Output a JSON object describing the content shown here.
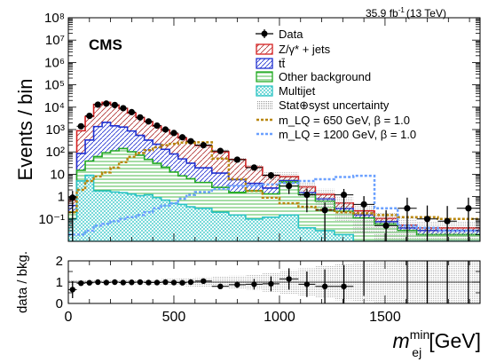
{
  "lumi_label": "35.9 fb",
  "lumi_exp": "-1",
  "lumi_energy": "(13 TeV)",
  "experiment_label": "CMS",
  "chart_data": [
    {
      "type": "bar",
      "subtype": "stacked-step-histogram",
      "y_scale": "log",
      "ylabel": "Events / bin",
      "ylim": [
        0.01,
        100000000
      ],
      "xlim": [
        0,
        1950
      ],
      "y_ticks": [
        "10⁻¹",
        "1",
        "10",
        "10²",
        "10³",
        "10⁴",
        "10⁵",
        "10⁶",
        "10⁷",
        "10⁸"
      ],
      "x_bins": [
        0,
        40,
        80,
        120,
        160,
        200,
        240,
        280,
        320,
        360,
        400,
        440,
        480,
        520,
        560,
        600,
        680,
        760,
        840,
        920,
        1000,
        1090,
        1170,
        1260,
        1350,
        1450,
        1560,
        1650,
        1750,
        1840,
        1950
      ],
      "series": [
        {
          "name": "Z/γ* + jets",
          "color": "#d62020",
          "values": [
            0.3,
            800,
            3500,
            12000,
            14500,
            11000,
            7500,
            4600,
            2900,
            1900,
            1200,
            820,
            560,
            370,
            250,
            170,
            90,
            40,
            17,
            6.5,
            2.7,
            1.2,
            0.5,
            0.22,
            0.08,
            0.03,
            0.012,
            0.01,
            0.01,
            0.01
          ]
        },
        {
          "name": "tt̄",
          "color": "#1f2fd0",
          "values": [
            0.2,
            70,
            300,
            1300,
            2000,
            1350,
            1150,
            760,
            480,
            290,
            190,
            110,
            68,
            40,
            25,
            15,
            8.7,
            4.2,
            2.1,
            1.1,
            0.55,
            0.3,
            0.15,
            0.08,
            0.04,
            0.015,
            0.01,
            0.01,
            0.01,
            0.01
          ]
        },
        {
          "name": "Other background",
          "color": "#22aa22",
          "values": [
            0.1,
            10,
            30,
            60,
            90,
            110,
            140,
            100,
            70,
            45,
            30,
            20,
            12,
            8,
            6,
            4,
            2.4,
            1.4,
            1.7,
            1.2,
            4.5,
            1.2,
            0.6,
            0.2,
            0.1,
            0.05,
            0.02,
            0.01,
            0.01,
            0.01
          ]
        },
        {
          "name": "Multijet",
          "color": "#2ac4c4",
          "values": [
            0.1,
            5,
            9,
            1.8,
            1.8,
            1.6,
            1.5,
            1.3,
            1.1,
            1.2,
            0.9,
            0.7,
            0.5,
            0.45,
            0.35,
            0.3,
            0.2,
            0.15,
            0.1,
            0.12,
            0.15,
            0.04,
            0.03,
            0.02,
            0.01,
            0.01,
            0.01,
            0.01,
            0.01,
            0.01
          ]
        }
      ],
      "signals": [
        {
          "name": "m_LQ = 650 GeV, β = 1.0",
          "color": "#b8860b",
          "values": [
            0.2,
            2,
            5,
            8,
            12,
            20,
            35,
            60,
            90,
            120,
            160,
            200,
            230,
            260,
            250,
            270,
            50,
            6,
            1.8,
            0.9,
            0.5,
            0.35,
            0.25,
            0.2,
            0.18,
            0.15,
            0.12,
            0.12,
            0.1,
            0.1
          ]
        },
        {
          "name": "m_LQ = 1200 GeV, β = 1.0",
          "color": "#6aa0ff",
          "values": [
            0.02,
            0.02,
            0.03,
            0.05,
            0.06,
            0.08,
            0.1,
            0.12,
            0.15,
            0.2,
            0.3,
            0.4,
            0.5,
            0.8,
            1.2,
            1.6,
            2.2,
            3.0,
            3.0,
            3.5,
            4.0,
            5.0,
            6.0,
            7.5,
            8.5,
            0.3,
            0.05,
            0.04,
            0.03,
            0.03
          ]
        }
      ],
      "data": {
        "name": "Data",
        "x": [
          20,
          60,
          100,
          140,
          180,
          220,
          260,
          300,
          340,
          380,
          420,
          460,
          500,
          540,
          580,
          640,
          720,
          800,
          880,
          960,
          1045,
          1130,
          1215,
          1305,
          1400,
          1505,
          1605,
          1700,
          1795,
          1895
        ],
        "y": [
          0.9,
          1400,
          4100,
          13000,
          14500,
          12500,
          9000,
          6000,
          3500,
          2300,
          1500,
          1000,
          700,
          450,
          300,
          200,
          110,
          45,
          20,
          9,
          3,
          1.2,
          0.25,
          1.2,
          0.45,
          0.05,
          0.3,
          0.1,
          0.08,
          0.3
        ],
        "yerr": [
          0.9,
          37,
          64,
          114,
          120,
          112,
          95,
          77,
          59,
          48,
          39,
          32,
          26,
          21,
          17,
          14,
          10,
          7,
          4.5,
          3,
          1.7,
          1,
          0.3,
          1,
          0.6,
          0.2,
          0.6,
          0.3,
          0.3,
          0.6
        ]
      },
      "uncertainty_name": "Stat⊕syst uncertainty"
    },
    {
      "type": "scatter",
      "ylabel": "data / bkg.",
      "xlabel": "m",
      "xlabel_sup": "min",
      "xlabel_sub": "ej",
      "xlabel_unit": "[GeV]",
      "ylim": [
        0,
        2
      ],
      "y_ticks": [
        "0",
        "1",
        "2"
      ],
      "xlim": [
        0,
        1950
      ],
      "x_ticks": [
        "0",
        "500",
        "1000",
        "1500"
      ],
      "x_tick_values": [
        0,
        500,
        1000,
        1500
      ],
      "x": [
        20,
        60,
        100,
        140,
        180,
        220,
        260,
        300,
        340,
        380,
        420,
        460,
        500,
        540,
        580,
        640,
        720,
        800,
        880,
        960,
        1045,
        1130,
        1215,
        1305
      ],
      "y": [
        0.65,
        0.95,
        0.97,
        1.0,
        0.98,
        1.0,
        0.98,
        0.99,
        1.0,
        0.98,
        0.98,
        1.0,
        0.98,
        0.97,
        1.0,
        1.05,
        0.8,
        0.88,
        0.9,
        0.92,
        1.15,
        0.9,
        0.8,
        0.8
      ],
      "yerr": [
        0.4,
        0.05,
        0.05,
        0.04,
        0.04,
        0.04,
        0.04,
        0.04,
        0.05,
        0.05,
        0.05,
        0.06,
        0.06,
        0.07,
        0.08,
        0.1,
        0.12,
        0.15,
        0.25,
        0.35,
        0.5,
        0.6,
        0.8,
        1.0
      ],
      "band_halfwidth": [
        0.1,
        0.08,
        0.08,
        0.08,
        0.08,
        0.08,
        0.1,
        0.1,
        0.1,
        0.12,
        0.12,
        0.15,
        0.15,
        0.18,
        0.2,
        0.22,
        0.25,
        0.3,
        0.35,
        0.45,
        0.55,
        0.65,
        0.75,
        0.85,
        0.9,
        0.95,
        1.0,
        1.0,
        1.0,
        1.0
      ]
    }
  ]
}
